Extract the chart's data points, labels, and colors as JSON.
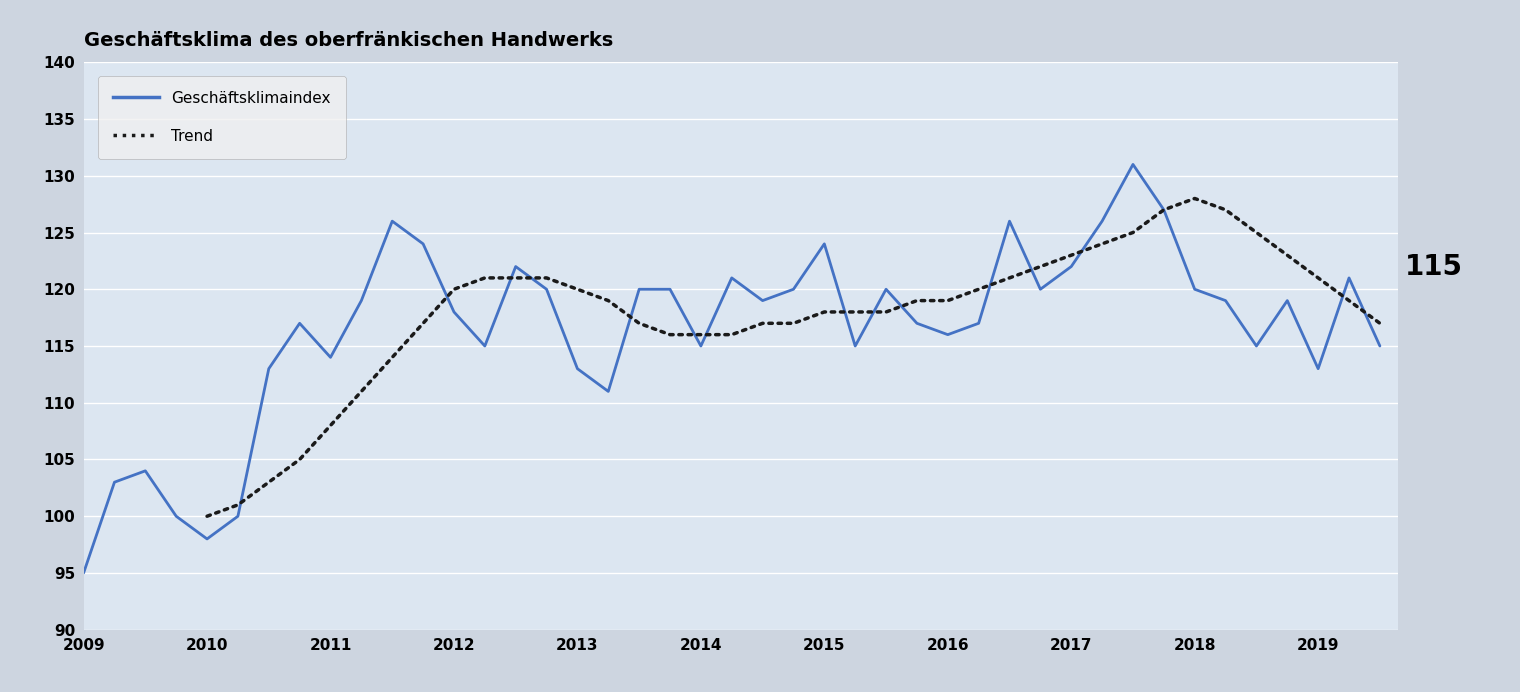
{
  "title": "Geschäftsklima des oberfränkischen Handwerks",
  "line_label": "Geschäftsklimaindex",
  "trend_label": "Trend",
  "annotation": "115",
  "line_color": "#4472C4",
  "trend_color": "#1a1a1a",
  "background_outer": "#cdd5e0",
  "background_inner": "#dce6f1",
  "ylim": [
    90,
    140
  ],
  "yticks": [
    90,
    95,
    100,
    105,
    110,
    115,
    120,
    125,
    130,
    135,
    140
  ],
  "xlabel_years": [
    2009,
    2010,
    2011,
    2012,
    2013,
    2014,
    2015,
    2016,
    2017,
    2018,
    2019
  ],
  "x_values": [
    2009.0,
    2009.25,
    2009.5,
    2009.75,
    2010.0,
    2010.25,
    2010.5,
    2010.75,
    2011.0,
    2011.25,
    2011.5,
    2011.75,
    2012.0,
    2012.25,
    2012.5,
    2012.75,
    2013.0,
    2013.25,
    2013.5,
    2013.75,
    2014.0,
    2014.25,
    2014.5,
    2014.75,
    2015.0,
    2015.25,
    2015.5,
    2015.75,
    2016.0,
    2016.25,
    2016.5,
    2016.75,
    2017.0,
    2017.25,
    2017.5,
    2017.75,
    2018.0,
    2018.25,
    2018.5,
    2018.75,
    2019.0,
    2019.25,
    2019.5
  ],
  "y_values": [
    95,
    103,
    104,
    100,
    98,
    100,
    113,
    117,
    114,
    119,
    126,
    124,
    118,
    115,
    122,
    120,
    113,
    111,
    120,
    120,
    115,
    121,
    119,
    120,
    124,
    115,
    120,
    117,
    116,
    117,
    126,
    120,
    122,
    126,
    131,
    127,
    120,
    119,
    115,
    119,
    113,
    121,
    115
  ],
  "trend_y": [
    null,
    null,
    null,
    null,
    100,
    101,
    103,
    105,
    108,
    111,
    114,
    117,
    120,
    121,
    121,
    121,
    120,
    119,
    117,
    116,
    116,
    116,
    117,
    117,
    118,
    118,
    118,
    119,
    119,
    120,
    121,
    122,
    123,
    124,
    125,
    127,
    128,
    127,
    125,
    123,
    121,
    119,
    117
  ],
  "legend_bg": "#f0f0f0",
  "title_fontsize": 14,
  "tick_fontsize": 11,
  "legend_fontsize": 11,
  "annotation_fontsize": 20
}
